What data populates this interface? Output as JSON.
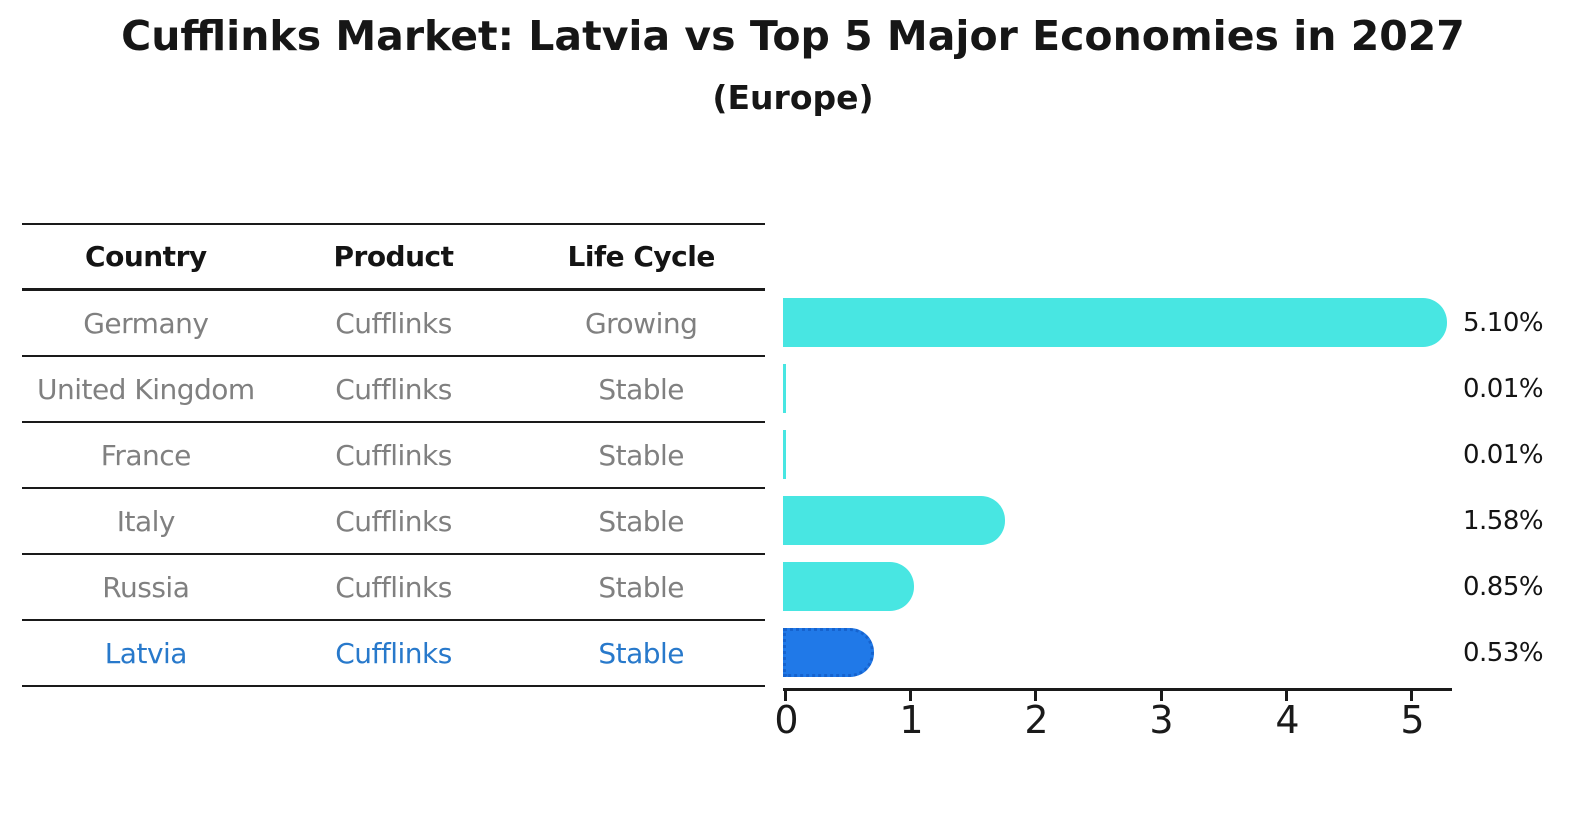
{
  "title": "Cufflinks Market: Latvia vs Top 5 Major Economies in 2027",
  "subtitle": "(Europe)",
  "table": {
    "headers": [
      "Country",
      "Product",
      "Life Cycle"
    ],
    "rows": [
      {
        "country": "Germany",
        "product": "Cufflinks",
        "life_cycle": "Growing",
        "highlight": false
      },
      {
        "country": "United Kingdom",
        "product": "Cufflinks",
        "life_cycle": "Stable",
        "highlight": false
      },
      {
        "country": "France",
        "product": "Cufflinks",
        "life_cycle": "Stable",
        "highlight": false
      },
      {
        "country": "Italy",
        "product": "Cufflinks",
        "life_cycle": "Stable",
        "highlight": false
      },
      {
        "country": "Russia",
        "product": "Cufflinks",
        "life_cycle": "Stable",
        "highlight": false
      },
      {
        "country": "Latvia",
        "product": "Cufflinks",
        "life_cycle": "Stable",
        "highlight": true
      }
    ]
  },
  "chart_data": {
    "type": "bar",
    "orientation": "horizontal",
    "title": "Cufflinks Market: Latvia vs Top 5 Major Economies in 2027 (Europe)",
    "categories": [
      "Germany",
      "United Kingdom",
      "France",
      "Italy",
      "Russia",
      "Latvia"
    ],
    "values": [
      5.1,
      0.01,
      0.01,
      1.58,
      0.85,
      0.53
    ],
    "labels": [
      "5.10%",
      "0.01%",
      "0.01%",
      "1.58%",
      "0.85%",
      "0.53%"
    ],
    "xlabel": "",
    "ylabel": "",
    "xlim": [
      0,
      5.35
    ],
    "xticks": [
      0,
      1,
      2,
      3,
      4,
      5
    ],
    "grid": false,
    "legend": "none",
    "bar_color": "#48E6E2",
    "highlight_index": 5,
    "highlight_color": "#2079E8",
    "highlight_border_color": "#1663CE"
  },
  "colors": {
    "text_primary": "#141414",
    "text_muted": "#808080",
    "highlight_text": "#2879CB",
    "axis": "#1a1a1a"
  }
}
